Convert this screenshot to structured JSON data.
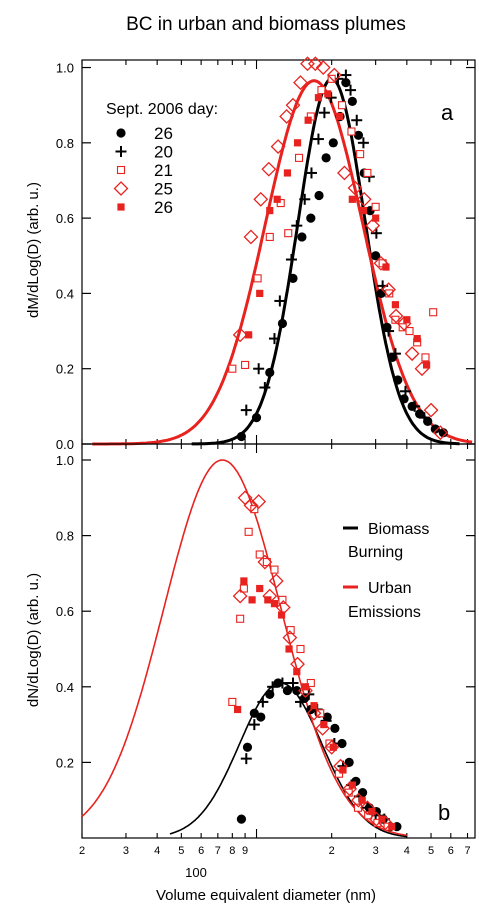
{
  "title": "BC in urban and biomass plumes",
  "xlabel": "Volume equivalent diameter (nm)",
  "colors": {
    "biomass": "#000000",
    "urban": "#e8231f"
  },
  "x_ticks_major_label": "100",
  "x_ticks_minor": [
    {
      "v": 20,
      "t": "2"
    },
    {
      "v": 30,
      "t": "3"
    },
    {
      "v": 40,
      "t": "4"
    },
    {
      "v": 50,
      "t": "5"
    },
    {
      "v": 60,
      "t": "6"
    },
    {
      "v": 70,
      "t": "7"
    },
    {
      "v": 80,
      "t": "8"
    },
    {
      "v": 90,
      "t": "9"
    },
    {
      "v": 200,
      "t": "2"
    },
    {
      "v": 300,
      "t": "3"
    },
    {
      "v": 400,
      "t": "4"
    },
    {
      "v": 500,
      "t": "5"
    },
    {
      "v": 600,
      "t": "6"
    },
    {
      "v": 700,
      "t": "7"
    }
  ],
  "panel_a": {
    "ylabel": "dM/dLog(D) (arb. u.)",
    "letter": "a",
    "yticks": [
      "0.0",
      "0.2",
      "0.4",
      "0.6",
      "0.8",
      "1.0"
    ],
    "legend_title": "Sept.  2006 day:",
    "legend": [
      {
        "label": "26",
        "marker": "filled-circle",
        "color": "#000000"
      },
      {
        "label": "20",
        "marker": "plus",
        "color": "#000000"
      },
      {
        "label": "21",
        "marker": "open-square",
        "color": "#e8231f"
      },
      {
        "label": "25",
        "marker": "open-diamond",
        "color": "#e8231f"
      },
      {
        "label": "26",
        "marker": "filled-square",
        "color": "#e8231f"
      }
    ]
  },
  "panel_b": {
    "ylabel": "dN/dLog(D) (arb. u.)",
    "letter": "b",
    "yticks": [
      "0.2",
      "0.4",
      "0.6",
      "0.8",
      "1.0"
    ],
    "key": [
      {
        "line1": "Biomass",
        "line2": "Burning",
        "color": "#000000"
      },
      {
        "line1": "Urban",
        "line2": "Emissions",
        "color": "#e8231f"
      }
    ]
  },
  "chart_data": [
    {
      "type": "scatter",
      "panel": "a",
      "x_scale": "log",
      "xlim": [
        20,
        750
      ],
      "ylim": [
        0,
        1.02
      ],
      "ylabel": "dM/dLog(D) (arb. u.)",
      "fits": [
        {
          "color": "#000000",
          "mode": 200,
          "sigma_log10": 0.135,
          "peak": 0.97,
          "x_range": [
            55,
            650
          ]
        },
        {
          "color": "#e8231f",
          "mode": 170,
          "sigma_log10": 0.195,
          "peak": 0.965,
          "x_range": [
            22,
            730
          ]
        }
      ],
      "series": [
        {
          "name": "26",
          "marker": "filled-circle",
          "color": "#000000",
          "x": [
            87,
            100,
            113,
            127,
            140,
            152,
            165,
            178,
            190,
            203,
            216,
            228,
            242,
            256,
            270,
            285,
            300,
            316,
            333,
            350,
            368,
            390,
            420,
            450,
            485,
            520,
            560
          ],
          "y": [
            0.02,
            0.07,
            0.19,
            0.32,
            0.44,
            0.55,
            0.6,
            0.66,
            0.76,
            0.8,
            0.87,
            0.96,
            0.91,
            0.82,
            0.72,
            0.62,
            0.5,
            0.4,
            0.31,
            0.23,
            0.17,
            0.12,
            0.1,
            0.08,
            0.06,
            0.04,
            0.03
          ]
        },
        {
          "name": "20",
          "marker": "plus",
          "color": "#000000",
          "x": [
            91,
            102,
            108,
            118,
            124,
            138,
            145,
            156,
            166,
            177,
            187,
            199,
            212,
            228,
            238,
            252,
            268,
            283,
            302,
            320,
            338,
            360,
            395,
            430,
            470
          ],
          "y": [
            0.09,
            0.2,
            0.15,
            0.28,
            0.38,
            0.49,
            0.58,
            0.65,
            0.72,
            0.81,
            0.88,
            0.92,
            0.97,
            0.98,
            0.94,
            0.86,
            0.8,
            0.71,
            0.56,
            0.42,
            0.3,
            0.24,
            0.14,
            0.1,
            0.07
          ]
        },
        {
          "name": "21",
          "marker": "open-square",
          "color": "#e8231f",
          "x": [
            80,
            90,
            101,
            113,
            125,
            134,
            148,
            165,
            182,
            200,
            220,
            240,
            260,
            278,
            300,
            320,
            340,
            360,
            385,
            410,
            440,
            475,
            510
          ],
          "y": [
            0.2,
            0.21,
            0.44,
            0.55,
            0.64,
            0.56,
            0.76,
            0.87,
            0.94,
            0.97,
            0.9,
            0.83,
            0.77,
            0.72,
            0.63,
            0.48,
            0.4,
            0.33,
            0.31,
            0.3,
            0.27,
            0.23,
            0.35
          ]
        },
        {
          "name": "25",
          "marker": "open-diamond",
          "color": "#e8231f",
          "x": [
            86,
            95,
            104,
            112,
            122,
            132,
            140,
            150,
            160,
            172,
            185,
            205,
            225,
            248,
            270,
            292,
            315,
            338,
            362,
            390,
            420,
            460,
            500,
            545
          ],
          "y": [
            0.29,
            0.55,
            0.65,
            0.73,
            0.79,
            0.87,
            0.9,
            0.96,
            1.01,
            1.01,
            1.0,
            0.98,
            0.72,
            0.68,
            0.65,
            0.58,
            0.48,
            0.41,
            0.34,
            0.32,
            0.24,
            0.2,
            0.09,
            0.03
          ]
        },
        {
          "name": "26",
          "marker": "filled-square",
          "color": "#e8231f",
          "x": [
            93,
            103,
            113,
            121,
            133,
            146,
            161,
            177,
            193,
            215,
            242,
            268,
            300,
            330,
            360,
            400,
            440,
            480
          ],
          "y": [
            0.29,
            0.4,
            0.62,
            0.65,
            0.72,
            0.8,
            0.86,
            0.92,
            0.93,
            0.87,
            0.65,
            0.62,
            0.6,
            0.47,
            0.37,
            0.33,
            0.28,
            0.21
          ]
        }
      ]
    },
    {
      "type": "scatter",
      "panel": "b",
      "x_scale": "log",
      "xlim": [
        20,
        750
      ],
      "ylim": [
        0,
        1.0
      ],
      "ylabel": "dN/dLog(D) (arb. u.)",
      "fits": [
        {
          "color": "#000000",
          "mode": 125,
          "sigma_log10": 0.165,
          "peak": 0.41,
          "x_range": [
            45,
            400
          ]
        },
        {
          "color": "#e8231f",
          "mode": 73,
          "sigma_log10": 0.235,
          "peak": 1.0,
          "x_range": [
            20,
            400
          ]
        }
      ],
      "series": [
        {
          "name": "26",
          "marker": "filled-circle",
          "color": "#000000",
          "x": [
            87,
            92,
            98,
            104,
            113,
            122,
            133,
            145,
            156,
            165,
            178,
            192,
            206,
            220,
            235,
            250,
            266,
            283,
            302,
            322,
            343,
            365
          ],
          "y": [
            0.05,
            0.24,
            0.33,
            0.32,
            0.38,
            0.41,
            0.39,
            0.39,
            0.37,
            0.34,
            0.33,
            0.32,
            0.29,
            0.25,
            0.2,
            0.15,
            0.12,
            0.08,
            0.07,
            0.05,
            0.03,
            0.03
          ]
        },
        {
          "name": "20",
          "marker": "plus",
          "color": "#000000",
          "x": [
            91,
            98,
            106,
            116,
            127,
            140,
            150,
            162,
            175,
            190,
            205,
            222,
            240,
            258,
            278,
            300,
            325
          ],
          "y": [
            0.21,
            0.3,
            0.36,
            0.4,
            0.41,
            0.41,
            0.36,
            0.38,
            0.34,
            0.31,
            0.25,
            0.19,
            0.14,
            0.11,
            0.08,
            0.06,
            0.05
          ]
        },
        {
          "name": "21",
          "marker": "open-square",
          "color": "#e8231f",
          "x": [
            80,
            86,
            89,
            93,
            98,
            103,
            110,
            118,
            127,
            137,
            150,
            165,
            180,
            196,
            214,
            234,
            255,
            280,
            305,
            335
          ],
          "y": [
            0.36,
            0.58,
            0.66,
            0.81,
            0.87,
            0.75,
            0.73,
            0.71,
            0.63,
            0.55,
            0.5,
            0.41,
            0.33,
            0.25,
            0.17,
            0.12,
            0.08,
            0.06,
            0.04,
            0.03
          ]
        },
        {
          "name": "25",
          "marker": "open-diamond",
          "color": "#e8231f",
          "x": [
            86,
            90,
            95,
            102,
            108,
            113,
            120,
            128,
            136,
            146,
            157,
            170,
            184,
            200,
            217,
            236,
            256,
            278,
            302,
            328
          ],
          "y": [
            0.64,
            0.9,
            0.88,
            0.89,
            0.73,
            0.64,
            0.68,
            0.61,
            0.53,
            0.46,
            0.39,
            0.33,
            0.29,
            0.24,
            0.19,
            0.13,
            0.1,
            0.08,
            0.05,
            0.04
          ]
        },
        {
          "name": "26",
          "marker": "filled-square",
          "color": "#e8231f",
          "x": [
            84,
            89,
            96,
            103,
            111,
            118,
            126,
            135,
            145,
            157,
            170,
            186,
            203,
            222,
            242,
            265,
            290,
            318,
            348
          ],
          "y": [
            0.34,
            0.68,
            0.63,
            0.66,
            0.63,
            0.62,
            0.59,
            0.5,
            0.44,
            0.4,
            0.35,
            0.3,
            0.24,
            0.18,
            0.14,
            0.1,
            0.07,
            0.05,
            0.03
          ]
        }
      ]
    }
  ]
}
